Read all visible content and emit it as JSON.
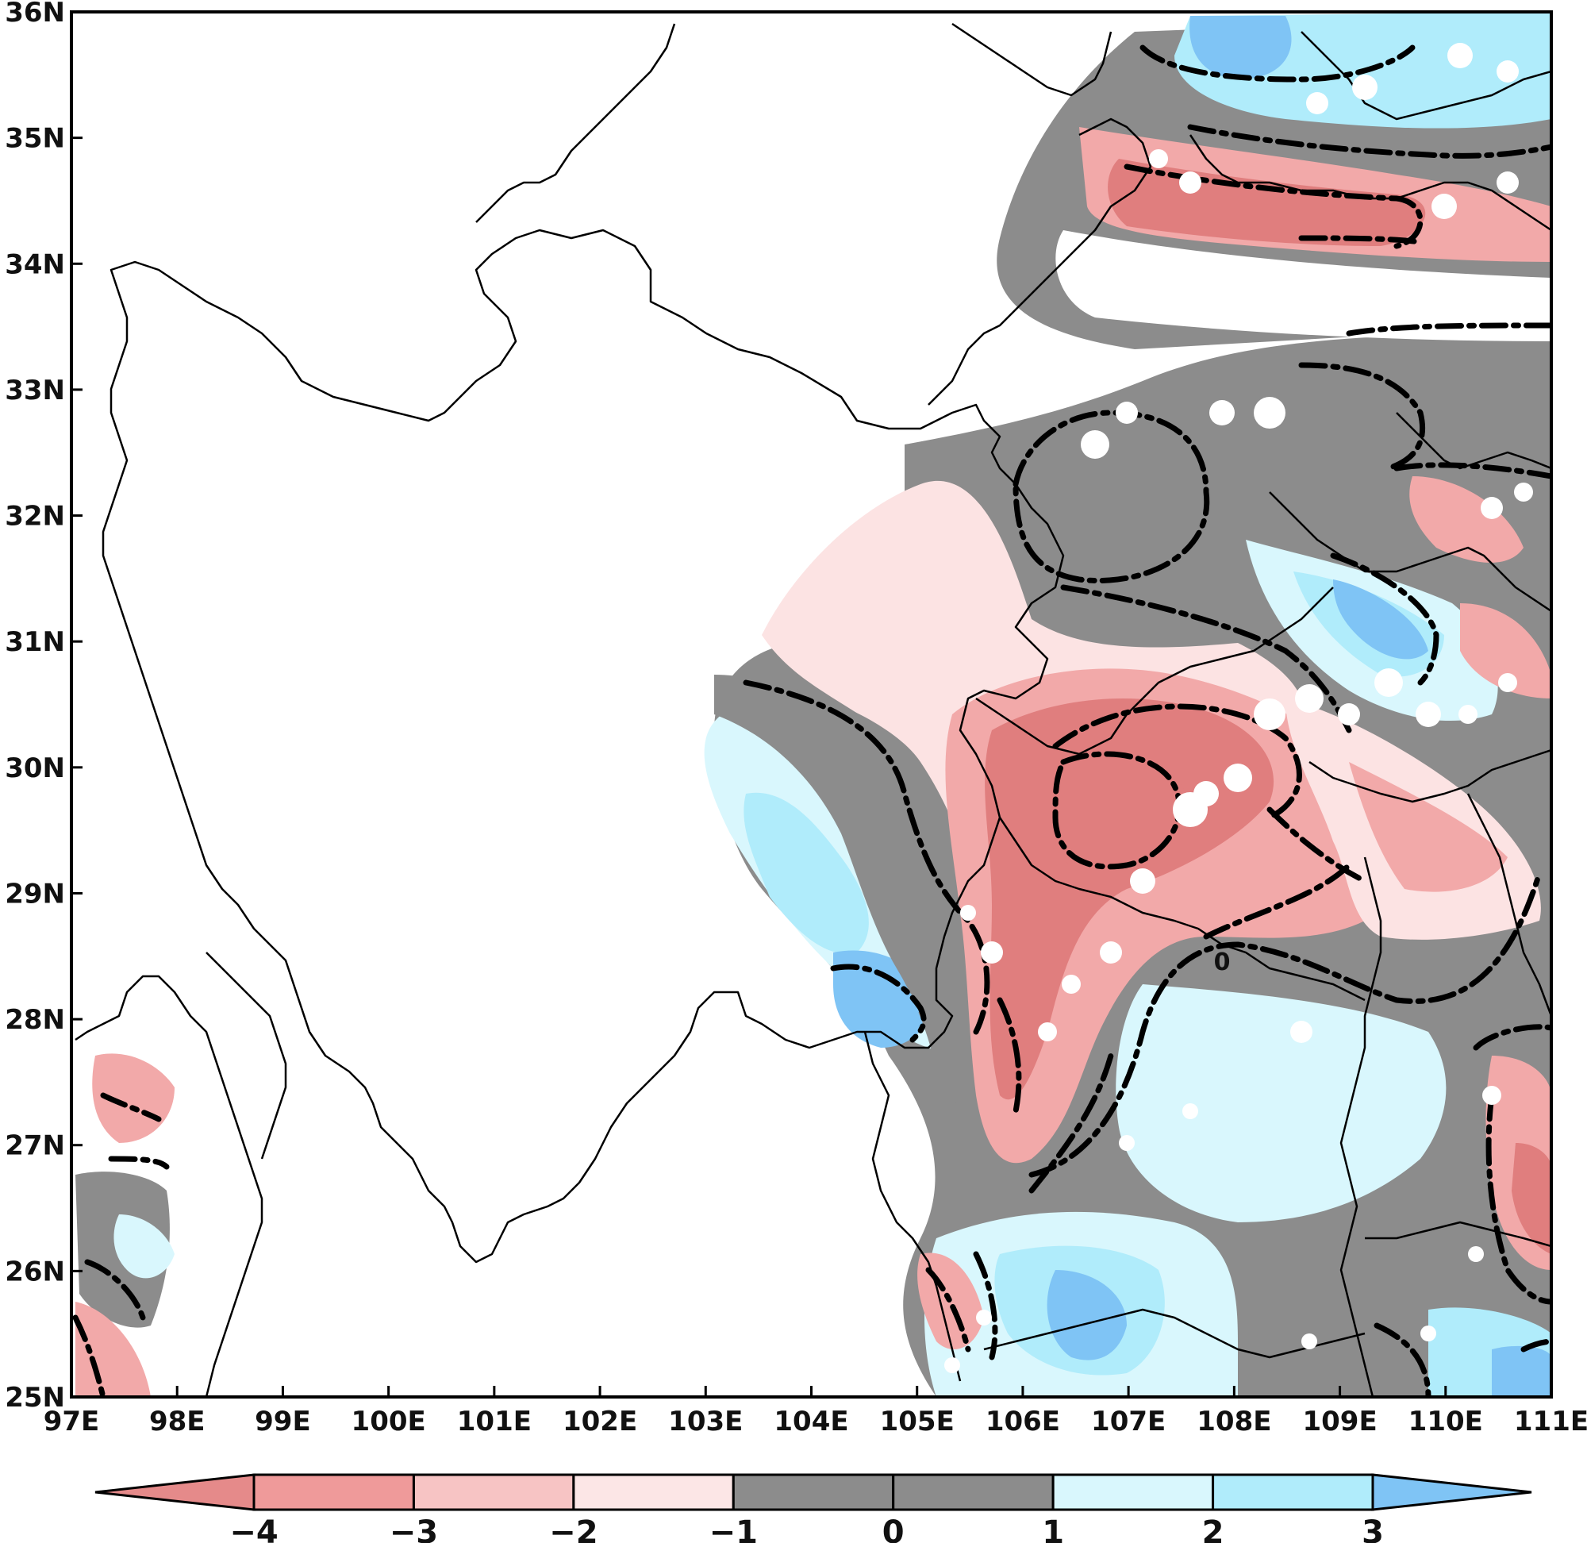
{
  "map": {
    "lon_labels": [
      "97E",
      "98E",
      "99E",
      "100E",
      "101E",
      "102E",
      "103E",
      "104E",
      "105E",
      "106E",
      "107E",
      "108E",
      "109E",
      "110E",
      "111E"
    ],
    "lat_labels": [
      "25N",
      "26N",
      "27N",
      "28N",
      "29N",
      "30N",
      "31N",
      "32N",
      "33N",
      "34N",
      "35N",
      "36N"
    ],
    "lon_range": [
      97,
      111
    ],
    "lat_range": [
      25,
      36
    ],
    "contour_label": "0"
  },
  "colorbar": {
    "labels": [
      "−4",
      "−3",
      "−2",
      "−1",
      "0",
      "1",
      "2",
      "3"
    ],
    "colors": [
      "#e58a8a",
      "#ef9a9a",
      "#f7c4c4",
      "#fce6e6",
      "#8c8c8c",
      "#8c8c8c",
      "#d9f7fd",
      "#b0ecfb",
      "#7fc4f5"
    ]
  },
  "colors": {
    "gray": "#8c8c8c",
    "red_dark": "#e07e7e",
    "red_mid": "#f2a9a9",
    "red_light": "#fce3e3",
    "blue_light": "#d9f7fd",
    "blue_mid": "#b0ecfb",
    "blue_dark": "#7fc4f5"
  }
}
